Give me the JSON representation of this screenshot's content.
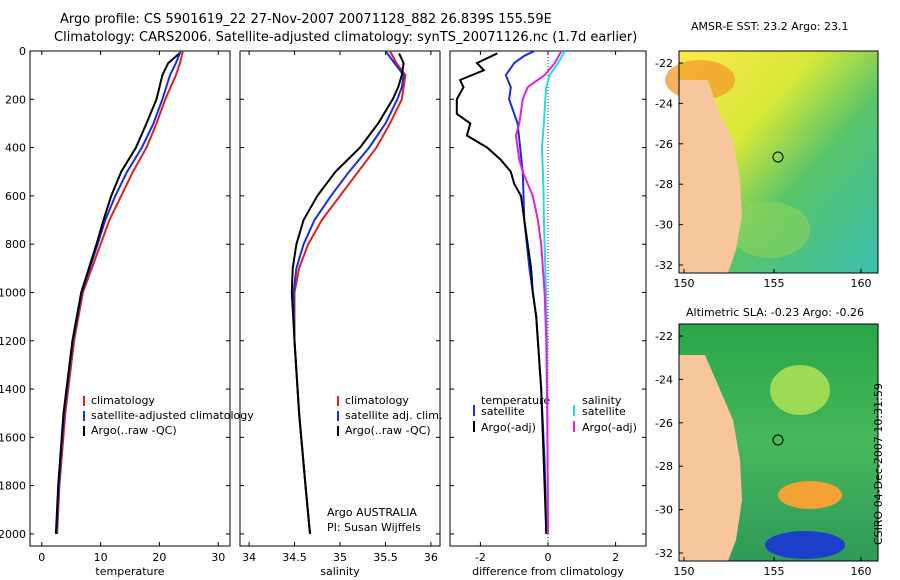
{
  "header": {
    "title_line1": "Argo profile: CS 5901619_22 27-Nov-2007 20071128_882 26.839S 155.59E",
    "title_line2": "Climatology: CARS2006. Satellite-adjusted climatology: synTS_20071126.nc (1.7d earlier)"
  },
  "colors": {
    "climatology": "#dd2222",
    "satellite": "#1a2ee0",
    "argo": "#000000",
    "sal_satellite": "#22dddd",
    "sal_argo": "#dd22dd",
    "land": "#f7c79b"
  },
  "maps": {
    "sst_title": "AMSR-E SST: 23.2 Argo: 23.1",
    "sla_title": "Altimetric SLA: -0.23 Argo: -0.26",
    "lat_ticks": [
      "-22",
      "-24",
      "-26",
      "-28",
      "-30",
      "-32"
    ],
    "lon_ticks": [
      "150",
      "155",
      "160"
    ],
    "side_label": "CSIRO 04-Dec-2007 10:31:59"
  },
  "chart_data": [
    {
      "type": "line",
      "xlabel": "temperature",
      "ylabel": "",
      "xlim": [
        -2,
        32
      ],
      "ylim": [
        2050,
        0
      ],
      "xticks": [
        0,
        10,
        20,
        30
      ],
      "yticks": [
        0,
        200,
        400,
        600,
        800,
        1000,
        1200,
        1400,
        1600,
        1800,
        2000
      ],
      "legend": [
        "climatology",
        "satellite-adjusted climatology",
        "Argo(..raw -QC)"
      ],
      "legend_position": "lower-right",
      "series": [
        {
          "name": "climatology",
          "color": "#dd2222",
          "depth": [
            0,
            50,
            100,
            200,
            300,
            400,
            500,
            600,
            700,
            800,
            1000,
            1200,
            1500,
            1800,
            2000
          ],
          "values": [
            24,
            23.5,
            22.8,
            21,
            19.5,
            17.8,
            15.5,
            13.5,
            11.5,
            10,
            7,
            5.5,
            4,
            3,
            2.6
          ]
        },
        {
          "name": "satellite-adjusted climatology",
          "color": "#1a2ee0",
          "depth": [
            0,
            50,
            100,
            200,
            300,
            400,
            500,
            600,
            700,
            800,
            1000,
            1200,
            1500,
            1800,
            2000
          ],
          "values": [
            23.6,
            22.8,
            21.8,
            20.5,
            19,
            17,
            14.5,
            12.5,
            10.8,
            9.5,
            6.8,
            5.3,
            3.8,
            2.9,
            2.5
          ]
        },
        {
          "name": "Argo(..raw -QC)",
          "color": "#000000",
          "depth": [
            10,
            50,
            100,
            200,
            300,
            400,
            500,
            600,
            700,
            800,
            1000,
            1200,
            1500,
            1800,
            2000
          ],
          "values": [
            23.4,
            21.5,
            20.5,
            19.5,
            17.8,
            16,
            13.5,
            11.8,
            10.5,
            9.3,
            6.7,
            5.2,
            3.7,
            2.8,
            2.4
          ]
        }
      ]
    },
    {
      "type": "line",
      "xlabel": "salinity",
      "ylabel": "",
      "xlim": [
        33.9,
        36.1
      ],
      "ylim": [
        2050,
        0
      ],
      "xticks": [
        34,
        34.5,
        35,
        35.5,
        36
      ],
      "legend": [
        "climatology",
        "satellite adj. clim.",
        "Argo(..raw -QC)"
      ],
      "legend_position": "lower-right",
      "annotation_line1": "Argo AUSTRALIA",
      "annotation_line2": "PI: Susan Wijffels",
      "series": [
        {
          "name": "climatology",
          "color": "#dd2222",
          "depth": [
            0,
            50,
            100,
            150,
            200,
            300,
            400,
            500,
            600,
            700,
            800,
            900,
            1000,
            1200,
            1500,
            1800,
            2000
          ],
          "values": [
            35.55,
            35.62,
            35.72,
            35.7,
            35.68,
            35.55,
            35.4,
            35.2,
            35,
            34.8,
            34.65,
            34.55,
            34.5,
            34.5,
            34.55,
            34.62,
            34.67
          ]
        },
        {
          "name": "satellite adj. clim.",
          "color": "#1a2ee0",
          "depth": [
            0,
            50,
            100,
            150,
            200,
            300,
            400,
            500,
            600,
            700,
            800,
            900,
            1000,
            1200,
            1500,
            1800,
            2000
          ],
          "values": [
            35.5,
            35.6,
            35.7,
            35.68,
            35.63,
            35.5,
            35.32,
            35.1,
            34.9,
            34.72,
            34.6,
            34.52,
            34.49,
            34.5,
            34.55,
            34.62,
            34.67
          ]
        },
        {
          "name": "Argo(..raw -QC)",
          "color": "#000000",
          "depth": [
            10,
            50,
            100,
            150,
            200,
            300,
            400,
            500,
            600,
            700,
            800,
            900,
            1000,
            1200,
            1500,
            1800,
            2000
          ],
          "values": [
            35.65,
            35.7,
            35.68,
            35.64,
            35.58,
            35.42,
            35.22,
            34.95,
            34.75,
            34.6,
            34.52,
            34.48,
            34.47,
            34.5,
            34.55,
            34.62,
            34.67
          ]
        }
      ]
    },
    {
      "type": "line",
      "xlabel": "difference from climatology",
      "ylabel": "",
      "xlim": [
        -2.9,
        2.9
      ],
      "ylim": [
        2050,
        0
      ],
      "xticks": [
        -2,
        0,
        2
      ],
      "legend": [
        "temperature",
        "satellite",
        "Argo(-adj)",
        "salinity",
        "satellite",
        "Argo(-adj)"
      ],
      "legend_position": "lower",
      "series": [
        {
          "name": "temperature satellite",
          "color": "#1a2ee0",
          "depth": [
            0,
            20,
            50,
            100,
            150,
            200,
            300,
            500,
            700,
            900,
            1100,
            1400,
            1700,
            2000
          ],
          "values": [
            -0.4,
            -0.7,
            -1,
            -1.25,
            -1.1,
            -1.15,
            -0.9,
            -0.75,
            -0.7,
            -0.55,
            -0.35,
            -0.2,
            -0.1,
            -0.05
          ]
        },
        {
          "name": "temperature Argo(-adj)",
          "color": "#000000",
          "depth": [
            10,
            50,
            80,
            120,
            150,
            200,
            260,
            300,
            350,
            400,
            450,
            500,
            550,
            600,
            700,
            800,
            900,
            1000,
            1100,
            1200,
            1400,
            1600,
            1800,
            2000
          ],
          "values": [
            -1.5,
            -2.1,
            -1.9,
            -2.6,
            -2.5,
            -2.7,
            -2.7,
            -2.3,
            -2.4,
            -1.8,
            -1.4,
            -1.1,
            -1,
            -0.8,
            -0.7,
            -0.6,
            -0.5,
            -0.45,
            -0.35,
            -0.3,
            -0.2,
            -0.15,
            -0.1,
            -0.05
          ]
        },
        {
          "name": "salinity satellite",
          "color": "#22dddd",
          "depth": [
            0,
            50,
            100,
            150,
            200,
            300,
            400,
            500,
            600,
            700,
            800,
            900,
            1000,
            1200,
            1500,
            2000
          ],
          "values": [
            0.5,
            0.3,
            0.05,
            -0.05,
            -0.08,
            -0.12,
            -0.18,
            -0.15,
            -0.13,
            -0.12,
            -0.1,
            -0.08,
            -0.06,
            -0.03,
            -0.02,
            0
          ]
        },
        {
          "name": "salinity Argo(-adj)",
          "color": "#dd22dd",
          "depth": [
            0,
            50,
            100,
            150,
            200,
            250,
            300,
            350,
            400,
            450,
            500,
            550,
            600,
            700,
            800,
            900,
            1000,
            1200,
            1500,
            2000
          ],
          "values": [
            0.4,
            0.2,
            -0.1,
            -0.6,
            -0.75,
            -0.8,
            -0.85,
            -0.95,
            -0.9,
            -0.85,
            -0.75,
            -0.6,
            -0.45,
            -0.3,
            -0.2,
            -0.15,
            -0.1,
            -0.05,
            -0.02,
            0
          ]
        }
      ]
    }
  ]
}
